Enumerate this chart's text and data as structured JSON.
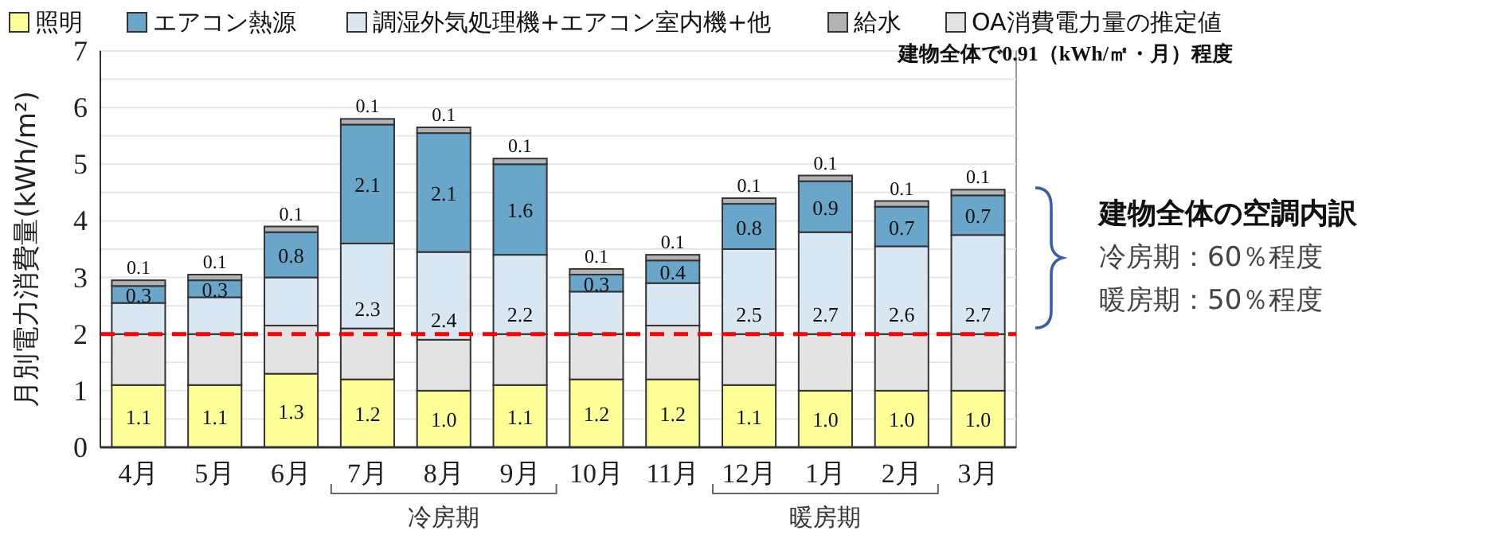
{
  "chart_data": {
    "type": "bar",
    "stacked": true,
    "ylabel": "月別電力消費量(kWh/m²)",
    "categories": [
      "4月",
      "5月",
      "6月",
      "7月",
      "8月",
      "9月",
      "10月",
      "11月",
      "12月",
      "1月",
      "2月",
      "3月"
    ],
    "series": [
      {
        "name": "照明",
        "color": "#ffff99",
        "values": [
          1.1,
          1.1,
          1.3,
          1.2,
          1.0,
          1.1,
          1.2,
          1.2,
          1.1,
          1.0,
          1.0,
          1.0
        ],
        "value_labels": [
          "1.1",
          "1.1",
          "1.3",
          "1.2",
          "1.0",
          "1.1",
          "1.2",
          "1.2",
          "1.1",
          "1.0",
          "1.0",
          "1.0"
        ]
      },
      {
        "name": "OA消費電力量の推定値",
        "color": "#e3e3e3",
        "values": [
          0.9,
          0.9,
          0.85,
          0.9,
          0.9,
          0.9,
          0.8,
          0.95,
          0.9,
          1.0,
          1.0,
          1.0
        ]
      },
      {
        "name": "調湿外気処理機+エアコン室内機+他",
        "color": "#d8e7f1",
        "values": [
          0.55,
          0.65,
          0.85,
          1.5,
          1.55,
          1.4,
          0.75,
          0.75,
          1.5,
          1.8,
          1.55,
          1.75
        ]
      },
      {
        "name": "エアコン熱源",
        "color": "#6aa6c9",
        "values": [
          0.3,
          0.3,
          0.8,
          2.1,
          2.1,
          1.6,
          0.3,
          0.4,
          0.8,
          0.9,
          0.7,
          0.7
        ],
        "value_labels": [
          "0.3",
          "0.3",
          "0.8",
          "2.1",
          "2.1",
          "1.6",
          "0.3",
          "0.4",
          "0.8",
          "0.9",
          "0.7",
          "0.7"
        ]
      },
      {
        "name": "給水",
        "color": "#b3b3b3",
        "values": [
          0.1,
          0.1,
          0.1,
          0.1,
          0.1,
          0.1,
          0.1,
          0.1,
          0.1,
          0.1,
          0.1,
          0.1
        ],
        "value_labels": [
          "0.1",
          "0.1",
          "0.1",
          "0.1",
          "0.1",
          "0.1",
          "0.1",
          "0.1",
          "0.1",
          "0.1",
          "0.1",
          "0.1"
        ]
      }
    ],
    "ylim": [
      0,
      7
    ],
    "yticks": [
      0,
      {
        "value": 0.5,
        "label": null
      },
      1,
      {
        "value": 1.5,
        "label": null
      },
      2,
      {
        "value": 2.5,
        "label": null
      },
      3,
      {
        "value": 3.5,
        "label": null
      },
      4,
      {
        "value": 4.5,
        "label": null
      },
      5,
      {
        "value": 5.5,
        "label": null
      },
      6,
      {
        "value": 6.5,
        "label": null
      },
      7
    ],
    "grid": "y",
    "legend": "top",
    "ref_lines": [
      {
        "axis": "y",
        "value": 2.0,
        "color": "#ff0000",
        "line_style": "dashed"
      }
    ],
    "annotations": [
      "建物全体で0.91（kWh/㎡・月）程度",
      "冷房期",
      "暖房期",
      "2.3",
      "2.4",
      "2.2",
      "2.5",
      "2.7",
      "2.6",
      "2.7",
      "建物全体の空調内訳",
      "冷房期：60％程度",
      "暖房期：50％程度"
    ]
  }
}
